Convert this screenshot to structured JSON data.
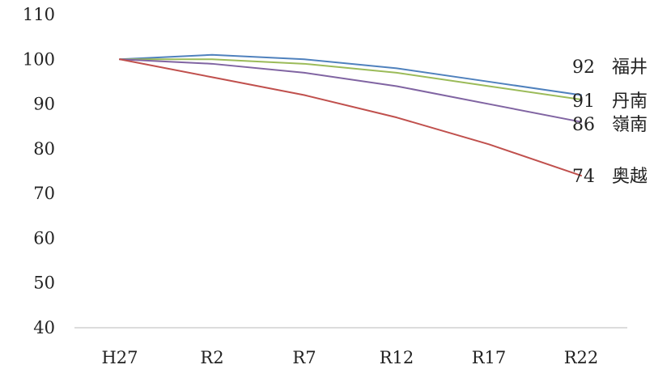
{
  "chart_data": {
    "type": "line",
    "title": "",
    "xlabel": "",
    "ylabel": "",
    "categories": [
      "H27",
      "R2",
      "R7",
      "R12",
      "R17",
      "R22"
    ],
    "ylim": [
      40,
      110
    ],
    "yticks": [
      40,
      50,
      60,
      70,
      80,
      90,
      100,
      110
    ],
    "grid": false,
    "series": [
      {
        "name": "福井",
        "end_value": "92",
        "color": "#4f81bd",
        "values": [
          100,
          101,
          100,
          98,
          95,
          92
        ]
      },
      {
        "name": "丹南",
        "end_value": "91",
        "color": "#9bbb59",
        "values": [
          100,
          100,
          99,
          97,
          94,
          91
        ]
      },
      {
        "name": "嶺南",
        "end_value": "86",
        "color": "#8064a2",
        "values": [
          100,
          99,
          97,
          94,
          90,
          86
        ]
      },
      {
        "name": "奥越",
        "end_value": "74",
        "color": "#c0504d",
        "values": [
          100,
          96,
          92,
          87,
          81,
          74
        ]
      }
    ]
  }
}
